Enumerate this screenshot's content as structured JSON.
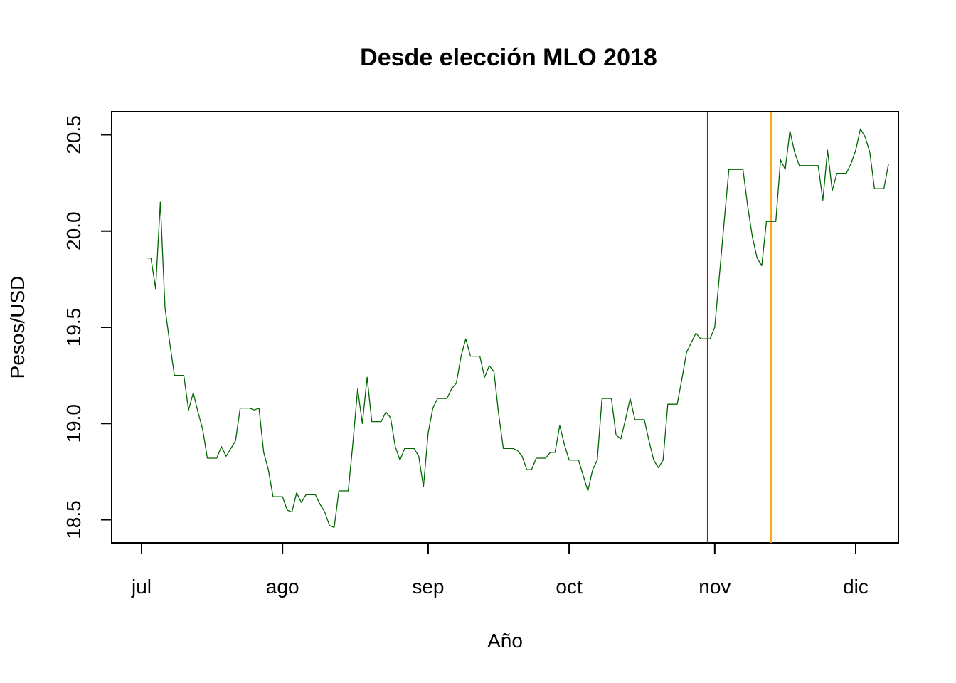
{
  "chart_data": {
    "type": "line",
    "title": "Desde elección MLO  2018",
    "xlabel": "Año",
    "ylabel": "Pesos/USD",
    "x_ticks": [
      "jul",
      "ago",
      "sep",
      "oct",
      "nov",
      "dic"
    ],
    "y_ticks": [
      "18.5",
      "19.0",
      "19.5",
      "20.0",
      "20.5"
    ],
    "ylim": [
      18.38,
      20.62
    ],
    "grid": false,
    "legend": "none",
    "series": [
      {
        "color": "#006400",
        "points": [
          [
            1,
            19.86
          ],
          [
            2,
            19.86
          ],
          [
            3,
            19.7
          ],
          [
            4,
            20.15
          ],
          [
            5,
            19.6
          ],
          [
            6,
            19.42
          ],
          [
            7,
            19.25
          ],
          [
            8,
            19.25
          ],
          [
            9,
            19.25
          ],
          [
            10,
            19.07
          ],
          [
            11,
            19.16
          ],
          [
            12,
            19.06
          ],
          [
            13,
            18.97
          ],
          [
            14,
            18.82
          ],
          [
            15,
            18.82
          ],
          [
            16,
            18.82
          ],
          [
            17,
            18.88
          ],
          [
            18,
            18.83
          ],
          [
            19,
            18.87
          ],
          [
            20,
            18.91
          ],
          [
            21,
            19.08
          ],
          [
            22,
            19.08
          ],
          [
            23,
            19.08
          ],
          [
            24,
            19.07
          ],
          [
            25,
            19.08
          ],
          [
            26,
            18.85
          ],
          [
            27,
            18.76
          ],
          [
            28,
            18.62
          ],
          [
            29,
            18.62
          ],
          [
            30,
            18.62
          ],
          [
            31,
            18.55
          ],
          [
            32,
            18.54
          ],
          [
            33,
            18.64
          ],
          [
            34,
            18.59
          ],
          [
            35,
            18.63
          ],
          [
            36,
            18.63
          ],
          [
            37,
            18.63
          ],
          [
            38,
            18.58
          ],
          [
            39,
            18.54
          ],
          [
            40,
            18.47
          ],
          [
            41,
            18.46
          ],
          [
            42,
            18.65
          ],
          [
            43,
            18.65
          ],
          [
            44,
            18.65
          ],
          [
            45,
            18.9
          ],
          [
            46,
            19.18
          ],
          [
            47,
            19.0
          ],
          [
            48,
            19.24
          ],
          [
            49,
            19.01
          ],
          [
            50,
            19.01
          ],
          [
            51,
            19.01
          ],
          [
            52,
            19.06
          ],
          [
            53,
            19.03
          ],
          [
            54,
            18.88
          ],
          [
            55,
            18.81
          ],
          [
            56,
            18.87
          ],
          [
            57,
            18.87
          ],
          [
            58,
            18.87
          ],
          [
            59,
            18.83
          ],
          [
            60,
            18.67
          ],
          [
            61,
            18.95
          ],
          [
            62,
            19.08
          ],
          [
            63,
            19.13
          ],
          [
            64,
            19.13
          ],
          [
            65,
            19.13
          ],
          [
            66,
            19.18
          ],
          [
            67,
            19.21
          ],
          [
            68,
            19.35
          ],
          [
            69,
            19.44
          ],
          [
            70,
            19.35
          ],
          [
            71,
            19.35
          ],
          [
            72,
            19.35
          ],
          [
            73,
            19.24
          ],
          [
            74,
            19.3
          ],
          [
            75,
            19.27
          ],
          [
            76,
            19.05
          ],
          [
            77,
            18.87
          ],
          [
            78,
            18.87
          ],
          [
            79,
            18.87
          ],
          [
            80,
            18.86
          ],
          [
            81,
            18.83
          ],
          [
            82,
            18.76
          ],
          [
            83,
            18.76
          ],
          [
            84,
            18.82
          ],
          [
            85,
            18.82
          ],
          [
            86,
            18.82
          ],
          [
            87,
            18.85
          ],
          [
            88,
            18.85
          ],
          [
            89,
            18.99
          ],
          [
            90,
            18.89
          ],
          [
            91,
            18.81
          ],
          [
            92,
            18.81
          ],
          [
            93,
            18.81
          ],
          [
            94,
            18.73
          ],
          [
            95,
            18.65
          ],
          [
            96,
            18.76
          ],
          [
            97,
            18.81
          ],
          [
            98,
            19.13
          ],
          [
            99,
            19.13
          ],
          [
            100,
            19.13
          ],
          [
            101,
            18.94
          ],
          [
            102,
            18.92
          ],
          [
            103,
            19.02
          ],
          [
            104,
            19.13
          ],
          [
            105,
            19.02
          ],
          [
            106,
            19.02
          ],
          [
            107,
            19.02
          ],
          [
            108,
            18.91
          ],
          [
            109,
            18.81
          ],
          [
            110,
            18.77
          ],
          [
            111,
            18.81
          ],
          [
            112,
            19.1
          ],
          [
            113,
            19.1
          ],
          [
            114,
            19.1
          ],
          [
            115,
            19.23
          ],
          [
            116,
            19.37
          ],
          [
            117,
            19.42
          ],
          [
            118,
            19.47
          ],
          [
            119,
            19.44
          ],
          [
            120,
            19.44
          ],
          [
            121,
            19.44
          ],
          [
            122,
            19.5
          ],
          [
            123,
            19.77
          ],
          [
            124,
            20.05
          ],
          [
            125,
            20.32
          ],
          [
            126,
            20.32
          ],
          [
            127,
            20.32
          ],
          [
            128,
            20.32
          ],
          [
            129,
            20.13
          ],
          [
            130,
            19.97
          ],
          [
            131,
            19.86
          ],
          [
            132,
            19.82
          ],
          [
            133,
            20.05
          ],
          [
            134,
            20.05
          ],
          [
            135,
            20.05
          ],
          [
            136,
            20.37
          ],
          [
            137,
            20.32
          ],
          [
            138,
            20.52
          ],
          [
            139,
            20.41
          ],
          [
            140,
            20.34
          ],
          [
            141,
            20.34
          ],
          [
            142,
            20.34
          ],
          [
            143,
            20.34
          ],
          [
            144,
            20.34
          ],
          [
            145,
            20.16
          ],
          [
            146,
            20.42
          ],
          [
            147,
            20.21
          ],
          [
            148,
            20.3
          ],
          [
            149,
            20.3
          ],
          [
            150,
            20.3
          ],
          [
            151,
            20.35
          ],
          [
            152,
            20.42
          ],
          [
            153,
            20.53
          ],
          [
            154,
            20.49
          ],
          [
            155,
            20.41
          ],
          [
            156,
            20.22
          ],
          [
            157,
            20.22
          ],
          [
            158,
            20.22
          ],
          [
            159,
            20.35
          ]
        ]
      }
    ],
    "x_tick_positions": [
      0,
      30,
      61,
      91,
      122,
      152
    ],
    "vlines": [
      {
        "x": 120.5,
        "color": "#cc0000"
      },
      {
        "x": 134,
        "color": "#ffa500"
      }
    ]
  }
}
